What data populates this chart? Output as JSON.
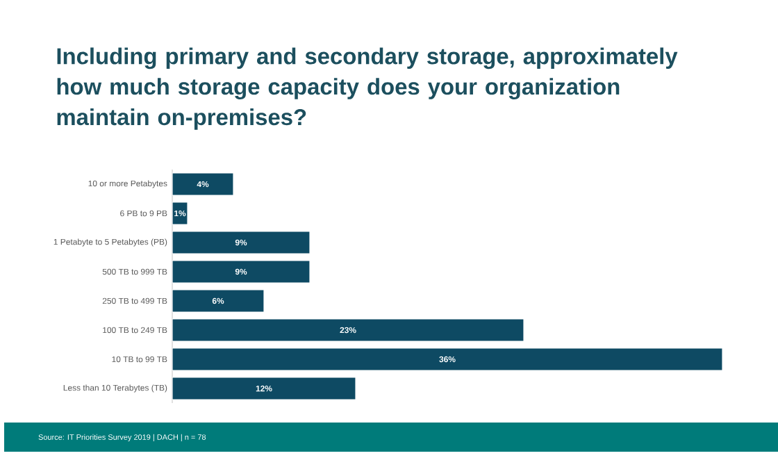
{
  "chart_data": {
    "type": "bar",
    "orientation": "horizontal",
    "title": "Including primary and secondary storage, approximately how much storage capacity does your organization maintain on-premises?",
    "categories": [
      "10 or more Petabytes",
      "6 PB to 9 PB",
      "1 Petabyte to 5 Petabytes (PB)",
      "500 TB to 999 TB",
      "250 TB to 499 TB",
      "100 TB to 249 TB",
      "10 TB to 99 TB",
      "Less than 10 Terabytes (TB)"
    ],
    "values": [
      4,
      1,
      9,
      9,
      6,
      23,
      36,
      12
    ],
    "value_labels": [
      "4%",
      "1%",
      "9%",
      "9%",
      "6%",
      "23%",
      "36%",
      "12%"
    ],
    "color": "#0e4a63",
    "xlim": [
      0,
      36
    ],
    "tick_labels": "y",
    "annotations": [
      "Source: IT Priorities Survey 2019 | DACH | n = 78"
    ]
  }
}
